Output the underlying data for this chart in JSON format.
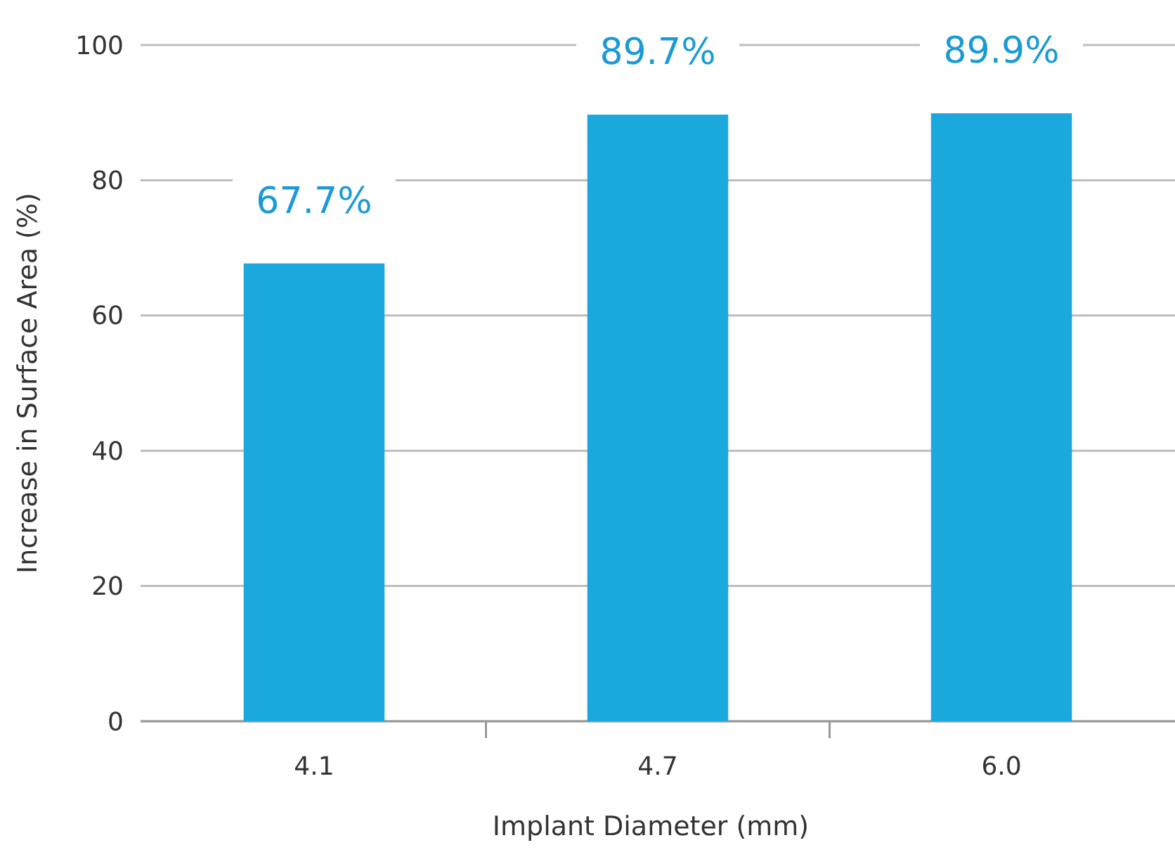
{
  "chart_data": {
    "type": "bar",
    "xlabel": "Implant Diameter (mm)",
    "ylabel": "Increase in Surface Area (%)",
    "categories": [
      "4.1",
      "4.7",
      "6.0"
    ],
    "values": [
      67.7,
      89.7,
      89.9
    ],
    "value_labels": [
      "67.7%",
      "89.7%",
      "89.9%"
    ],
    "color": "#1ba8dc",
    "ylim": [
      0,
      100
    ],
    "yticks": [
      0,
      20,
      40,
      60,
      80,
      100
    ],
    "grid": "y"
  }
}
